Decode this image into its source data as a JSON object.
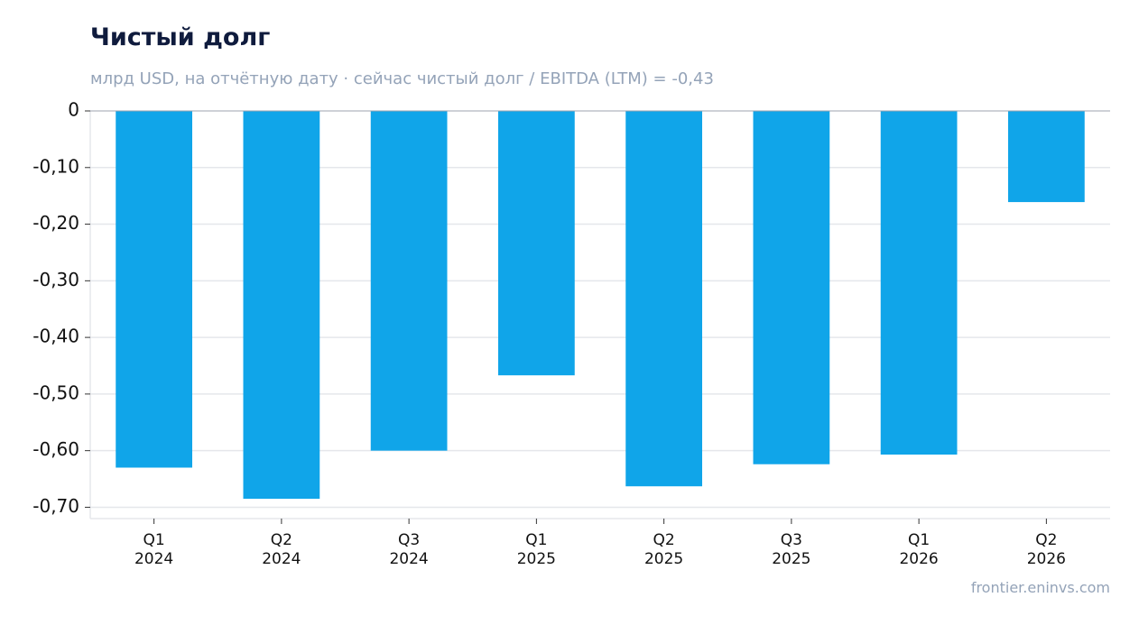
{
  "header": {
    "title": "Чистый долг",
    "subtitle": "млрд USD, на отчётную дату · сейчас чистый долг / EBITDA (LTM) = -0,43"
  },
  "footer": {
    "source": "frontier.eninvs.com"
  },
  "colors": {
    "bar": "#10a5e9",
    "grid": "#e5e7eb",
    "title": "#0f1b3d",
    "muted": "#94a3b8",
    "text": "#111111"
  },
  "chart_data": {
    "type": "bar",
    "categories": [
      [
        "Q1",
        "2024"
      ],
      [
        "Q2",
        "2024"
      ],
      [
        "Q3",
        "2024"
      ],
      [
        "Q1",
        "2025"
      ],
      [
        "Q2",
        "2025"
      ],
      [
        "Q3",
        "2025"
      ],
      [
        "Q1",
        "2026"
      ],
      [
        "Q2",
        "2026"
      ]
    ],
    "values": [
      -0.63,
      -0.685,
      -0.6,
      -0.467,
      -0.663,
      -0.624,
      -0.607,
      -0.161
    ],
    "yticks": [
      0,
      -0.1,
      -0.2,
      -0.3,
      -0.4,
      -0.5,
      -0.6,
      -0.7
    ],
    "ytick_labels": [
      "0",
      "-0,10",
      "-0,20",
      "-0,30",
      "-0,40",
      "-0,50",
      "-0,60",
      "-0,70"
    ],
    "ylim": [
      -0.72,
      0
    ],
    "grid": true,
    "legend": "none"
  }
}
